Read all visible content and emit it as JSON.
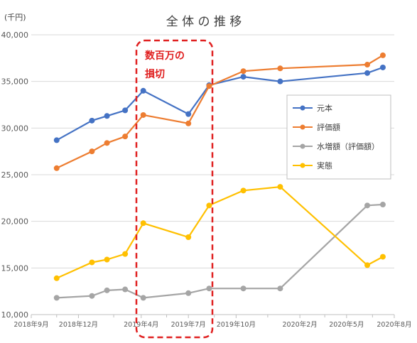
{
  "chart_data": {
    "type": "line",
    "title": "全 体 の 推 移",
    "unit": "(千円)",
    "x_ticks": [
      "2018年9月",
      "2018年12月",
      "2019年4月",
      "2019年7月",
      "2019年10月",
      "2020年2月",
      "2020年5月",
      "2020年8月"
    ],
    "y_ticks": [
      "10,000",
      "15,000",
      "20,000",
      "25,000",
      "30,000",
      "35,000",
      "40,000"
    ],
    "ylim": [
      10000,
      40000
    ],
    "grid": "horizontal",
    "legend_position": "right",
    "annotation": [
      "数百万の",
      "損切"
    ],
    "x": [
      "2018-10-20",
      "2018-12-27",
      "2019-01-25",
      "2019-03-01",
      "2019-04-05",
      "2019-07-01",
      "2019-08-10",
      "2019-10-15",
      "2019-12-25",
      "2020-06-10",
      "2020-07-10"
    ],
    "series": [
      {
        "name": "元本",
        "color": "#4472c4",
        "points": [
          [
            "2018-10-20",
            28700
          ],
          [
            "2018-12-27",
            30800
          ],
          [
            "2019-01-25",
            31300
          ],
          [
            "2019-03-01",
            31900
          ],
          [
            "2019-04-05",
            34000
          ],
          [
            "2019-07-01",
            31500
          ],
          [
            "2019-08-10",
            34600
          ],
          [
            "2019-10-15",
            35500
          ],
          [
            "2019-12-25",
            35000
          ],
          [
            "2020-06-10",
            35900
          ],
          [
            "2020-07-10",
            36500
          ]
        ]
      },
      {
        "name": "評価額",
        "color": "#ed7d31",
        "points": [
          [
            "2018-10-20",
            25700
          ],
          [
            "2018-12-27",
            27500
          ],
          [
            "2019-01-25",
            28400
          ],
          [
            "2019-03-01",
            29100
          ],
          [
            "2019-04-05",
            31400
          ],
          [
            "2019-07-01",
            30500
          ],
          [
            "2019-08-10",
            34500
          ],
          [
            "2019-10-15",
            36100
          ],
          [
            "2019-12-25",
            36400
          ],
          [
            "2020-06-10",
            36800
          ],
          [
            "2020-07-10",
            37800
          ]
        ]
      },
      {
        "name": "水増額（評価額）",
        "color": "#a5a5a5",
        "points": [
          [
            "2018-10-20",
            11800
          ],
          [
            "2018-12-27",
            12000
          ],
          [
            "2019-01-25",
            12600
          ],
          [
            "2019-03-01",
            12700
          ],
          [
            "2019-04-05",
            11800
          ],
          [
            "2019-07-01",
            12300
          ],
          [
            "2019-08-10",
            12800
          ],
          [
            "2019-10-15",
            12800
          ],
          [
            "2019-12-25",
            12800
          ],
          [
            "2020-06-10",
            21700
          ],
          [
            "2020-07-10",
            21800
          ]
        ]
      },
      {
        "name": "実態",
        "color": "#ffc000",
        "points": [
          [
            "2018-10-20",
            13900
          ],
          [
            "2018-12-27",
            15600
          ],
          [
            "2019-01-25",
            15900
          ],
          [
            "2019-03-01",
            16500
          ],
          [
            "2019-04-05",
            19800
          ],
          [
            "2019-07-01",
            18300
          ],
          [
            "2019-08-10",
            21700
          ],
          [
            "2019-10-15",
            23300
          ],
          [
            "2019-12-25",
            23700
          ],
          [
            "2020-06-10",
            15300
          ],
          [
            "2020-07-10",
            16200
          ]
        ]
      }
    ]
  }
}
